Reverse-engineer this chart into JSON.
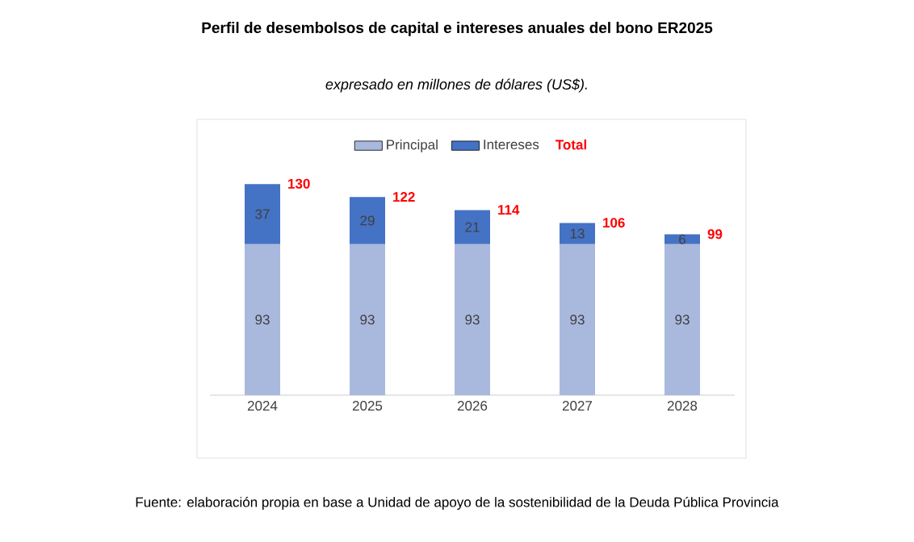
{
  "chart_data": {
    "type": "bar",
    "title": "Perfil de desembolsos de capital e intereses anuales del bono ER2025",
    "subtitle": "expresado en millones de dólares (US$).",
    "categories": [
      "2024",
      "2025",
      "2026",
      "2027",
      "2028"
    ],
    "stacked": true,
    "legend": "top",
    "tick_labels": "x",
    "series": [
      {
        "name": "Principal",
        "color": "#a9b8dd",
        "values": [
          93,
          93,
          93,
          93,
          93
        ],
        "value_labels": [
          "93",
          "93",
          "93",
          "93",
          "93"
        ]
      },
      {
        "name": "Intereses",
        "color": "#4472c4",
        "values": [
          37,
          29,
          21,
          13,
          6
        ],
        "value_labels": [
          "37",
          "29",
          "21",
          "13",
          "6"
        ]
      }
    ],
    "totals": [
      "130",
      "122",
      "114",
      "106",
      "99"
    ],
    "annotations": [
      "Total",
      "Fuente: elaboración propia en base a Unidad de apoyo de la sostenibilidad de la Deuda Pública Provincia"
    ]
  }
}
